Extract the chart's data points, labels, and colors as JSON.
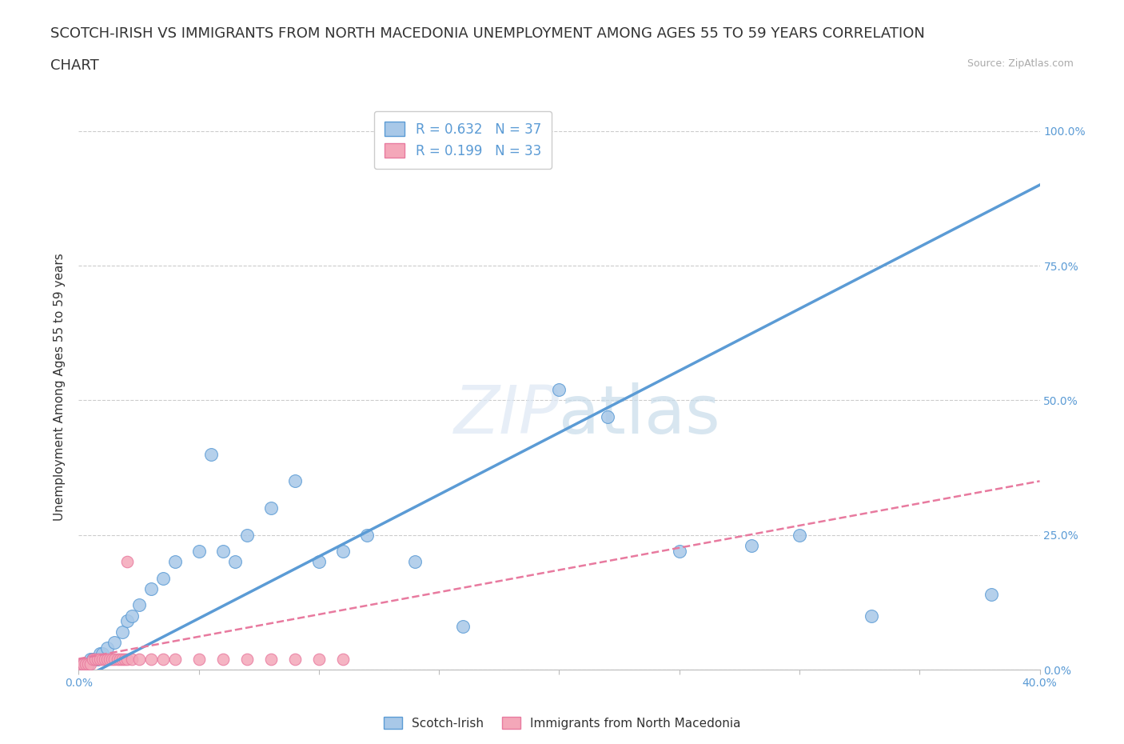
{
  "title_line1": "SCOTCH-IRISH VS IMMIGRANTS FROM NORTH MACEDONIA UNEMPLOYMENT AMONG AGES 55 TO 59 YEARS CORRELATION",
  "title_line2": "CHART",
  "source": "Source: ZipAtlas.com",
  "ylabel": "Unemployment Among Ages 55 to 59 years",
  "background_color": "#ffffff",
  "watermark": "ZIPatlas",
  "blue_R": 0.632,
  "blue_N": 37,
  "pink_R": 0.199,
  "pink_N": 33,
  "blue_color": "#a8c8e8",
  "blue_line_color": "#5b9bd5",
  "pink_color": "#f4a7b9",
  "pink_line_color": "#e87a9f",
  "blue_scatter_x": [
    0.002,
    0.003,
    0.004,
    0.005,
    0.006,
    0.007,
    0.008,
    0.009,
    0.01,
    0.012,
    0.015,
    0.018,
    0.02,
    0.022,
    0.025,
    0.03,
    0.035,
    0.04,
    0.05,
    0.055,
    0.06,
    0.065,
    0.07,
    0.08,
    0.09,
    0.1,
    0.11,
    0.12,
    0.14,
    0.16,
    0.2,
    0.22,
    0.25,
    0.28,
    0.3,
    0.33,
    0.38
  ],
  "blue_scatter_y": [
    0.01,
    0.01,
    0.01,
    0.02,
    0.02,
    0.02,
    0.02,
    0.03,
    0.03,
    0.04,
    0.05,
    0.07,
    0.09,
    0.1,
    0.12,
    0.15,
    0.17,
    0.2,
    0.22,
    0.4,
    0.22,
    0.2,
    0.25,
    0.3,
    0.35,
    0.2,
    0.22,
    0.25,
    0.2,
    0.08,
    0.52,
    0.47,
    0.22,
    0.23,
    0.25,
    0.1,
    0.14
  ],
  "pink_scatter_x": [
    0.001,
    0.002,
    0.003,
    0.004,
    0.005,
    0.006,
    0.007,
    0.008,
    0.009,
    0.01,
    0.011,
    0.012,
    0.013,
    0.014,
    0.015,
    0.016,
    0.017,
    0.018,
    0.019,
    0.02,
    0.022,
    0.025,
    0.03,
    0.035,
    0.04,
    0.05,
    0.06,
    0.07,
    0.08,
    0.09,
    0.1,
    0.11,
    0.02
  ],
  "pink_scatter_y": [
    0.01,
    0.01,
    0.01,
    0.01,
    0.01,
    0.02,
    0.02,
    0.02,
    0.02,
    0.02,
    0.02,
    0.02,
    0.02,
    0.02,
    0.02,
    0.02,
    0.02,
    0.02,
    0.02,
    0.02,
    0.02,
    0.02,
    0.02,
    0.02,
    0.02,
    0.02,
    0.02,
    0.02,
    0.02,
    0.02,
    0.02,
    0.02,
    0.2
  ],
  "blue_line_x0": 0.0,
  "blue_line_y0": -0.02,
  "blue_line_x1": 0.4,
  "blue_line_y1": 0.9,
  "pink_line_x0": 0.0,
  "pink_line_y0": 0.02,
  "pink_line_x1": 0.4,
  "pink_line_y1": 0.35,
  "xlim": [
    0.0,
    0.4
  ],
  "ylim": [
    0.0,
    1.05
  ],
  "yticks": [
    0.0,
    0.25,
    0.5,
    0.75,
    1.0
  ],
  "ytick_labels": [
    "0.0%",
    "25.0%",
    "50.0%",
    "75.0%",
    "100.0%"
  ],
  "xticks": [
    0.0,
    0.05,
    0.1,
    0.15,
    0.2,
    0.25,
    0.3,
    0.35,
    0.4
  ],
  "xtick_labels_show": [
    "0.0%",
    "",
    "",
    "",
    "",
    "",
    "",
    "",
    "40.0%"
  ],
  "legend_blue_label": "R = 0.632   N = 37",
  "legend_pink_label": "R = 0.199   N = 33",
  "grid_color": "#cccccc",
  "title_fontsize": 13,
  "axis_label_fontsize": 11,
  "tick_color": "#5b9bd5"
}
